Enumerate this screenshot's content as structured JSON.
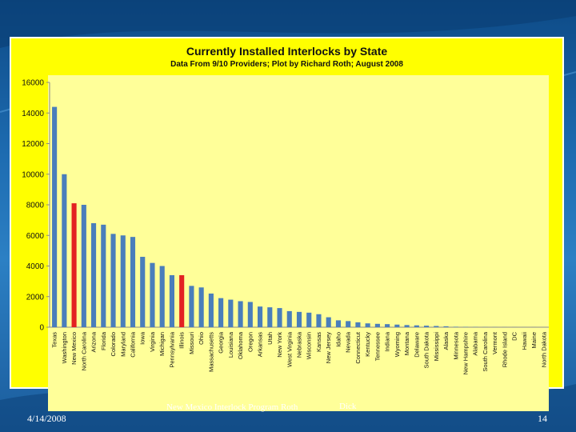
{
  "footer": {
    "date": "4/14/2008",
    "title": "New Mexico Interlock Program Roth",
    "author": "Dick",
    "page": "14"
  },
  "colors": {
    "bar": "#4a7ebb",
    "highlight": "#e32222",
    "chart_bg": "#ffff00",
    "plot_bg": "#ffff99"
  },
  "chart_data": {
    "type": "bar",
    "title": "Currently Installed Interlocks by State",
    "subtitle": "Data From 9/10 Providers; Plot by Richard Roth; August 2008",
    "xlabel": "",
    "ylabel": "",
    "ylim": [
      0,
      16000
    ],
    "yticks": [
      0,
      2000,
      4000,
      6000,
      8000,
      10000,
      12000,
      14000,
      16000
    ],
    "highlighted": [
      "New Mexico",
      "Illinois"
    ],
    "categories": [
      "Texas",
      "Washington",
      "New Mexico",
      "North Carolina",
      "Arizona",
      "Florida",
      "Colorado",
      "Maryland",
      "California",
      "Iowa",
      "Virginia",
      "Michigan",
      "Pennsylvania",
      "Illinois",
      "Missouri",
      "Ohio",
      "Massachusetts",
      "Georgia",
      "Louisiana",
      "Oklahoma",
      "Oregon",
      "Arkansas",
      "Utah",
      "New York",
      "West Virginia",
      "Nebraska",
      "Wisconsin",
      "Kansas",
      "New Jersey",
      "Idaho",
      "Nevada",
      "Connecticut",
      "Kentucky",
      "Tennessee",
      "Indiana",
      "Wyoming",
      "Montana",
      "Delaware",
      "South Dakota",
      "Mississippi",
      "Alaska",
      "Minnesota",
      "New Hampshire",
      "Alabama",
      "South Carolina",
      "Vermont",
      "Rhode Island",
      "DC",
      "Hawaii",
      "Maine",
      "North Dakota"
    ],
    "values": [
      14400,
      10000,
      8100,
      8000,
      6800,
      6700,
      6100,
      6000,
      5900,
      4600,
      4200,
      4000,
      3400,
      3400,
      2700,
      2600,
      2200,
      1900,
      1800,
      1700,
      1650,
      1350,
      1300,
      1250,
      1050,
      1000,
      950,
      850,
      650,
      450,
      400,
      320,
      250,
      220,
      200,
      170,
      140,
      120,
      100,
      80,
      60,
      30,
      20,
      15,
      10,
      8,
      6,
      4,
      3,
      2,
      1
    ]
  }
}
